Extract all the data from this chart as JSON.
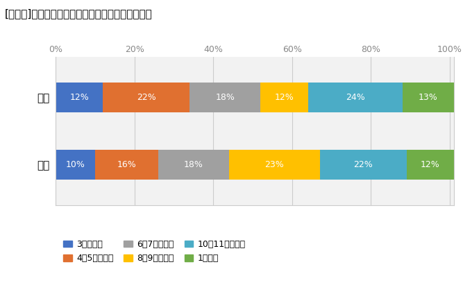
{
  "title": "[図表７]　就職活動に要した期間（文系・理系別）",
  "categories": [
    "文系",
    "理系"
  ],
  "segments": [
    {
      "label": "3カ月以内",
      "color": "#4472C4",
      "values": [
        12,
        10
      ]
    },
    {
      "label": "4～5カ月程度",
      "color": "#E07030",
      "values": [
        22,
        16
      ]
    },
    {
      "label": "6～7カ月程度",
      "color": "#A0A0A0",
      "values": [
        18,
        18
      ]
    },
    {
      "label": "8～9カ月程度",
      "color": "#FFC000",
      "values": [
        12,
        23
      ]
    },
    {
      "label": "10～11カ月程度",
      "color": "#4BACC6",
      "values": [
        24,
        22
      ]
    },
    {
      "label": "1年以上",
      "color": "#70AD47",
      "values": [
        13,
        12
      ]
    }
  ],
  "xlim": [
    0,
    101
  ],
  "xticks": [
    0,
    20,
    40,
    60,
    80,
    100
  ],
  "xticklabels": [
    "0%",
    "20%",
    "40%",
    "60%",
    "80%",
    "100%"
  ],
  "bar_height": 0.45,
  "text_color": "#FFFFFF",
  "background_color": "#FFFFFF",
  "grid_color": "#CCCCCC",
  "title_fontsize": 11,
  "axis_fontsize": 9,
  "bar_fontsize": 9,
  "legend_fontsize": 9,
  "ylabel_fontsize": 11
}
